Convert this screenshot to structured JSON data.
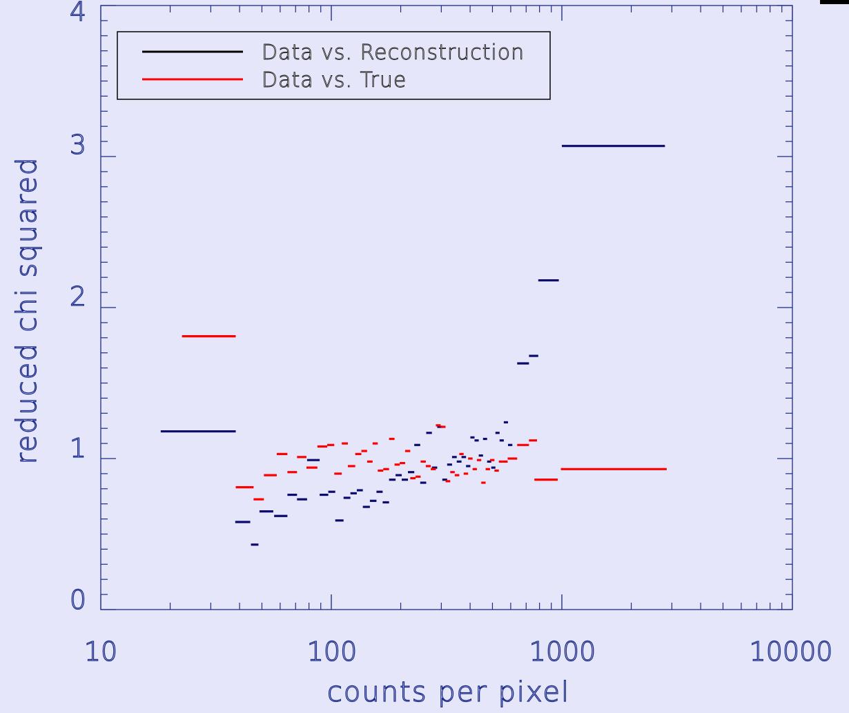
{
  "chart_data": {
    "type": "scatter",
    "xlabel": "counts per pixel",
    "ylabel": "reduced chi squared",
    "xscale": "log",
    "xlim": [
      10,
      10000
    ],
    "ylim": [
      0,
      4
    ],
    "x_ticks": [
      "10",
      "100",
      "1000",
      "10000"
    ],
    "y_ticks": [
      "0",
      "1",
      "2",
      "3",
      "4"
    ],
    "legend_position": "top-left",
    "series": [
      {
        "name": "Data vs. Reconstruction",
        "color": "#0a0a6e",
        "legend_color": "#000000",
        "segments": [
          [
            18.2,
            38.5,
            1.18
          ],
          [
            38.3,
            44.5,
            0.58
          ],
          [
            44.8,
            48.3,
            0.43
          ],
          [
            48.8,
            56,
            0.65
          ],
          [
            56.5,
            64.5,
            0.62
          ],
          [
            64.5,
            71,
            0.76
          ],
          [
            71,
            78.5,
            0.73
          ],
          [
            78.5,
            89,
            0.99
          ],
          [
            89,
            97,
            0.76
          ],
          [
            97,
            104,
            0.78
          ],
          [
            104,
            113,
            0.59
          ],
          [
            113,
            121,
            0.74
          ],
          [
            121,
            129,
            0.77
          ],
          [
            129,
            137,
            0.79
          ],
          [
            137,
            147,
            0.68
          ],
          [
            147,
            157,
            0.72
          ],
          [
            157,
            167,
            0.78
          ],
          [
            167,
            178,
            0.71
          ],
          [
            178,
            190,
            0.86
          ],
          [
            190,
            202,
            0.89
          ],
          [
            202,
            215,
            0.86
          ],
          [
            215,
            229,
            0.91
          ],
          [
            229,
            243,
            1.09
          ],
          [
            243,
            258,
            0.84
          ],
          [
            258,
            273,
            1.17
          ],
          [
            273,
            288,
            0.94
          ],
          [
            288,
            303,
            1.21
          ],
          [
            303,
            318,
            0.86
          ],
          [
            318,
            334,
            0.96
          ],
          [
            334,
            350,
            1.01
          ],
          [
            350,
            367,
            0.98
          ],
          [
            367,
            384,
            1.01
          ],
          [
            384,
            401,
            0.95
          ],
          [
            401,
            418,
            1.14
          ],
          [
            418,
            436,
            1.12
          ],
          [
            436,
            455,
            1.02
          ],
          [
            455,
            474,
            1.13
          ],
          [
            474,
            494,
            0.98
          ],
          [
            494,
            515,
            0.94
          ],
          [
            515,
            537,
            1.17
          ],
          [
            537,
            560,
            1.12
          ],
          [
            560,
            584,
            1.24
          ],
          [
            584,
            610,
            1.09
          ],
          [
            640,
            720,
            1.63
          ],
          [
            720,
            790,
            1.68
          ],
          [
            790,
            970,
            2.18
          ],
          [
            1000,
            2800,
            3.07
          ]
        ]
      },
      {
        "name": "Data vs. True",
        "color": "#ff0000",
        "legend_color": "#ff0000",
        "segments": [
          [
            22.5,
            38.5,
            1.81
          ],
          [
            38.5,
            46,
            0.81
          ],
          [
            46,
            51,
            0.73
          ],
          [
            51,
            58,
            0.89
          ],
          [
            58,
            64.5,
            1.03
          ],
          [
            64.5,
            71,
            0.91
          ],
          [
            71,
            78,
            1.01
          ],
          [
            78,
            87,
            0.94
          ],
          [
            87,
            96,
            1.08
          ],
          [
            96,
            103,
            1.09
          ],
          [
            103,
            111,
            0.9
          ],
          [
            111,
            118,
            1.1
          ],
          [
            118,
            127,
            0.95
          ],
          [
            127,
            135,
            1.03
          ],
          [
            135,
            143,
            1.05
          ],
          [
            143,
            151,
            0.98
          ],
          [
            151,
            159,
            1.1
          ],
          [
            159,
            168,
            0.92
          ],
          [
            168,
            178,
            0.93
          ],
          [
            178,
            188,
            1.13
          ],
          [
            188,
            198,
            0.96
          ],
          [
            198,
            209,
            0.97
          ],
          [
            209,
            220,
            1.05
          ],
          [
            220,
            232,
            0.87
          ],
          [
            232,
            244,
            0.88
          ],
          [
            244,
            257,
            0.98
          ],
          [
            257,
            270,
            0.95
          ],
          [
            270,
            284,
            0.93
          ],
          [
            284,
            298,
            1.22
          ],
          [
            298,
            313,
            1.21
          ],
          [
            313,
            328,
            0.85
          ],
          [
            328,
            343,
            0.91
          ],
          [
            343,
            359,
            0.89
          ],
          [
            359,
            375,
            1.03
          ],
          [
            375,
            392,
            0.9
          ],
          [
            392,
            410,
            1.0
          ],
          [
            410,
            428,
            0.93
          ],
          [
            428,
            447,
            0.99
          ],
          [
            447,
            467,
            0.84
          ],
          [
            467,
            488,
            0.93
          ],
          [
            488,
            510,
            0.99
          ],
          [
            510,
            533,
            0.92
          ],
          [
            533,
            556,
            0.98
          ],
          [
            556,
            582,
            0.98
          ],
          [
            582,
            640,
            1.0
          ],
          [
            640,
            720,
            1.09
          ],
          [
            720,
            780,
            1.12
          ],
          [
            760,
            960,
            0.86
          ],
          [
            990,
            2850,
            0.93
          ]
        ]
      }
    ]
  }
}
